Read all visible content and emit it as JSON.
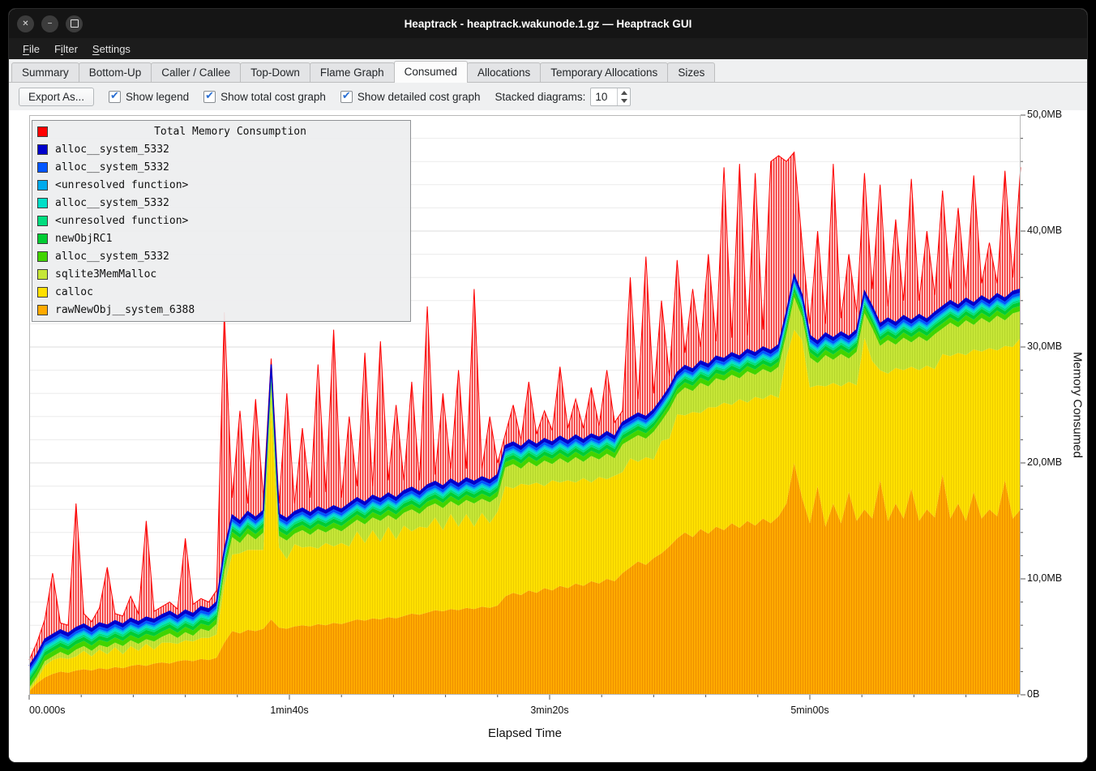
{
  "window": {
    "title": "Heaptrack - heaptrack.wakunode.1.gz — Heaptrack GUI",
    "controls": [
      {
        "name": "close",
        "glyph": "✕"
      },
      {
        "name": "minimize",
        "glyph": "−"
      },
      {
        "name": "maximize",
        "glyph": ""
      }
    ]
  },
  "menu": {
    "items": [
      {
        "label": "File",
        "underline_index": 0
      },
      {
        "label": "Filter",
        "underline_index": 1
      },
      {
        "label": "Settings",
        "underline_index": 0
      }
    ]
  },
  "tabs": {
    "items": [
      "Summary",
      "Bottom-Up",
      "Caller / Callee",
      "Top-Down",
      "Flame Graph",
      "Consumed",
      "Allocations",
      "Temporary Allocations",
      "Sizes"
    ],
    "active": "Consumed"
  },
  "toolbar": {
    "export_button": "Export As...",
    "checkboxes": [
      {
        "label": "Show legend",
        "checked": true
      },
      {
        "label": "Show total cost graph",
        "checked": true
      },
      {
        "label": "Show detailed cost graph",
        "checked": true
      }
    ],
    "stacked_label": "Stacked diagrams:",
    "stacked_value": "10"
  },
  "colors": {
    "checkbox_check": "#2a6fd3",
    "grid_minor": "#ececec",
    "grid_major": "#dcdcdc",
    "plot_frame": "#b9b9b9"
  },
  "chart_data": {
    "type": "area",
    "title": "Total Memory Consumption",
    "xlabel": "Elapsed Time",
    "ylabel": "Memory Consumed",
    "x_range_s": [
      0,
      381
    ],
    "x_step_s": 3,
    "y_range_mb": [
      0,
      50
    ],
    "x_tick_labels": [
      "00.000s",
      "1min40s",
      "3min20s",
      "5min00s"
    ],
    "x_tick_seconds": [
      0,
      100,
      200,
      300
    ],
    "y_tick_labels": [
      "0B",
      "10,0MB",
      "20,0MB",
      "30,0MB",
      "40,0MB",
      "50,0MB"
    ],
    "y_tick_mb": [
      0,
      10,
      20,
      30,
      40,
      50
    ],
    "series": [
      {
        "name": "rawNewObj__system_6388",
        "color": "#ffaa00",
        "texture": "#ee9000",
        "tops_mb": [
          0.3,
          1.0,
          1.5,
          1.8,
          2.0,
          1.9,
          2.1,
          2.2,
          2.1,
          2.3,
          2.2,
          2.4,
          2.3,
          2.5,
          2.6,
          2.5,
          2.7,
          2.8,
          2.7,
          2.9,
          3.0,
          2.9,
          3.1,
          3.0,
          3.2,
          4.5,
          5.5,
          5.3,
          5.6,
          5.5,
          5.7,
          6.5,
          5.8,
          5.7,
          5.9,
          6.0,
          5.9,
          6.1,
          6.0,
          6.2,
          6.1,
          6.3,
          6.5,
          6.4,
          6.6,
          6.5,
          6.7,
          6.6,
          6.8,
          7.0,
          6.9,
          7.1,
          7.3,
          7.2,
          7.4,
          7.3,
          7.5,
          7.4,
          7.6,
          7.5,
          7.7,
          8.5,
          8.8,
          8.6,
          9.0,
          8.8,
          9.2,
          9.0,
          9.4,
          9.2,
          9.6,
          9.4,
          9.8,
          9.6,
          10.0,
          9.8,
          10.5,
          11.0,
          11.5,
          11.2,
          11.8,
          12.2,
          12.8,
          13.5,
          14.0,
          13.6,
          14.3,
          13.9,
          14.5,
          14.2,
          14.8,
          14.4,
          15.0,
          14.6,
          15.2,
          14.8,
          15.4,
          16.5,
          20.0,
          17.0,
          14.8,
          18.0,
          14.5,
          16.5,
          14.8,
          17.5,
          15.0,
          16.0,
          15.2,
          18.5,
          15.0,
          16.5,
          15.2,
          17.8,
          15.0,
          16.0,
          15.3,
          19.0,
          15.2,
          16.5,
          15.0,
          17.5,
          15.2,
          16.0,
          15.4,
          18.5,
          15.2,
          16.0
        ]
      },
      {
        "name": "calloc",
        "color": "#ffe000",
        "texture": "#edcd00",
        "tops_mb": [
          0.4,
          1.3,
          2.5,
          3.0,
          3.2,
          3.1,
          3.3,
          3.8,
          3.3,
          3.9,
          3.5,
          4.1,
          3.5,
          4.2,
          3.8,
          4.4,
          3.9,
          4.5,
          4.5,
          4.4,
          4.7,
          4.6,
          4.9,
          4.9,
          5.2,
          9.4,
          12.1,
          12.2,
          12.5,
          12.5,
          12.5,
          24.8,
          12.7,
          11.7,
          13.0,
          12.7,
          12.8,
          12.6,
          13.1,
          12.8,
          13.1,
          12.8,
          14.1,
          13.1,
          14.2,
          13.2,
          14.5,
          13.4,
          14.6,
          14.1,
          14.5,
          14.4,
          15.3,
          14.2,
          15.6,
          14.5,
          15.6,
          14.5,
          15.7,
          14.8,
          15.8,
          18.0,
          17.8,
          18.2,
          18.1,
          18.3,
          18.0,
          18.5,
          18.3,
          18.5,
          18.3,
          18.7,
          18.3,
          18.8,
          18.6,
          18.9,
          19.2,
          20.4,
          20.1,
          20.5,
          20.3,
          21.9,
          22.1,
          24.2,
          24.1,
          24.4,
          24.3,
          24.8,
          24.8,
          25.2,
          25.0,
          25.5,
          25.2,
          25.7,
          25.5,
          25.9,
          25.6,
          29.1,
          31.5,
          30.6,
          26.5,
          26.7,
          26.6,
          26.9,
          26.6,
          27.0,
          26.7,
          30.8,
          28.8,
          28.0,
          27.7,
          28.2,
          28.0,
          28.3,
          28.0,
          28.4,
          28.1,
          29.4,
          29.2,
          29.5,
          29.3,
          29.8,
          29.6,
          29.9,
          29.7,
          30.1,
          30.0,
          30.8
        ]
      },
      {
        "name": "sqlite3MemMalloc",
        "color": "#c6e637",
        "texture": "#b6d62c",
        "tops_mb": [
          0.6,
          1.6,
          2.9,
          3.3,
          3.7,
          3.4,
          3.9,
          4.2,
          3.8,
          4.3,
          4.1,
          4.5,
          4.2,
          4.7,
          4.4,
          4.8,
          4.6,
          5.0,
          5.3,
          4.9,
          5.4,
          5.1,
          5.7,
          5.5,
          6.1,
          10.6,
          13.6,
          13.1,
          13.9,
          13.4,
          14.0,
          26.6,
          13.7,
          13.3,
          13.9,
          14.2,
          13.8,
          14.3,
          14.0,
          14.4,
          14.1,
          14.6,
          15.1,
          14.7,
          15.3,
          15.0,
          15.5,
          15.1,
          15.7,
          16.0,
          15.6,
          16.2,
          16.5,
          16.1,
          16.7,
          16.3,
          16.8,
          16.5,
          16.9,
          16.6,
          17.1,
          19.6,
          19.9,
          19.5,
          20.1,
          19.7,
          20.2,
          19.9,
          20.4,
          20.0,
          20.5,
          20.1,
          20.6,
          20.3,
          20.8,
          20.4,
          21.6,
          22.0,
          22.4,
          22.1,
          22.7,
          23.6,
          24.6,
          25.9,
          26.5,
          26.2,
          26.9,
          26.6,
          27.3,
          27.1,
          27.6,
          27.3,
          27.9,
          27.6,
          28.1,
          27.8,
          28.3,
          31.1,
          34.3,
          32.6,
          29.1,
          28.6,
          29.3,
          28.9,
          29.4,
          29.0,
          29.6,
          32.9,
          31.6,
          30.1,
          30.6,
          30.2,
          30.8,
          30.4,
          30.9,
          30.5,
          31.1,
          31.6,
          32.1,
          31.7,
          32.3,
          31.9,
          32.5,
          32.1,
          32.7,
          32.3,
          32.9,
          33.1
        ]
      },
      {
        "name": "alloc__system_5332",
        "color": "#41d400",
        "band_mb": 0.45
      },
      {
        "name": "newObjRC1",
        "color": "#00cc33",
        "band_mb": 0.35
      },
      {
        "name": "<unresolved function>",
        "color": "#00dd7f",
        "band_mb": 0.2
      },
      {
        "name": "alloc__system_5332",
        "color": "#00dfc8",
        "band_mb": 0.2
      },
      {
        "name": "<unresolved function>",
        "color": "#00aaec",
        "band_mb": 0.15
      },
      {
        "name": "alloc__system_5332",
        "color": "#0055ff",
        "band_mb": 0.25
      },
      {
        "name": "alloc__system_5332",
        "color": "#0000cc",
        "band_mb": 0.3
      }
    ],
    "total": {
      "name": "Total Memory Consumption",
      "color": "#ff0000",
      "fill_base": "#ffd2d2",
      "fill_line": "#f32020",
      "values_mb": [
        3.0,
        4.5,
        6.5,
        10.5,
        6.2,
        6.0,
        16.5,
        7.0,
        6.3,
        7.5,
        11.0,
        7.0,
        6.8,
        8.5,
        7.0,
        15.0,
        7.2,
        7.6,
        8.0,
        7.4,
        13.5,
        7.8,
        8.3,
        8.0,
        9.0,
        33.0,
        17.0,
        24.5,
        16.5,
        25.5,
        17.0,
        29.0,
        16.5,
        26.0,
        16.5,
        23.0,
        17.0,
        28.5,
        17.5,
        31.5,
        17.0,
        24.0,
        18.0,
        29.5,
        18.0,
        30.5,
        18.5,
        25.0,
        18.5,
        27.0,
        18.5,
        33.5,
        19.0,
        26.0,
        19.5,
        28.0,
        19.5,
        35.0,
        19.5,
        24.0,
        20.0,
        22.5,
        25.0,
        22.0,
        27.0,
        22.5,
        24.5,
        22.8,
        28.3,
        23.0,
        25.5,
        23.0,
        26.5,
        23.2,
        28.0,
        23.5,
        24.5,
        36.0,
        25.5,
        37.8,
        26.0,
        34.0,
        27.5,
        37.5,
        29.5,
        35.0,
        30.0,
        38.0,
        30.5,
        45.5,
        30.8,
        45.8,
        31.0,
        45.0,
        31.5,
        46.0,
        46.5,
        46.0,
        46.8,
        39.0,
        32.0,
        40.0,
        32.0,
        45.8,
        32.5,
        38.0,
        33.0,
        45.0,
        35.0,
        44.0,
        33.5,
        41.0,
        34.0,
        44.5,
        34.0,
        40.0,
        34.5,
        43.5,
        35.0,
        42.0,
        35.0,
        44.8,
        35.5,
        39.0,
        35.5,
        45.2,
        36.0,
        45.5
      ]
    }
  }
}
